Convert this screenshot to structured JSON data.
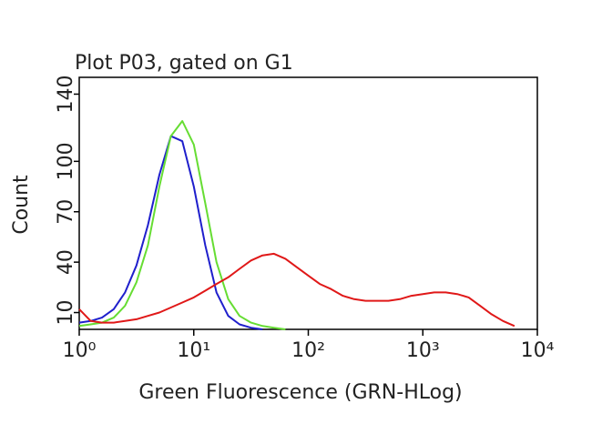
{
  "chart_data": {
    "type": "line",
    "title": "Plot P03, gated on G1",
    "x_label": "Green Fluorescence (GRN-HLog)",
    "y_label": "Count",
    "x_scale": "log",
    "xlim": [
      1,
      10000
    ],
    "xticks": [
      {
        "value": 1,
        "label": "10⁰"
      },
      {
        "value": 10,
        "label": "10¹"
      },
      {
        "value": 100,
        "label": "10²"
      },
      {
        "value": 1000,
        "label": "10³"
      },
      {
        "value": 10000,
        "label": "10⁴"
      }
    ],
    "ylim": [
      0,
      150
    ],
    "yticks": [
      10,
      40,
      70,
      100,
      140
    ],
    "x": [
      1,
      1.26,
      1.58,
      2,
      2.51,
      3.16,
      3.98,
      5.01,
      6.31,
      7.94,
      10,
      12.6,
      15.8,
      20,
      25.1,
      31.6,
      39.8,
      50.1,
      63.1,
      79.4,
      100,
      126,
      158,
      200,
      251,
      316,
      398,
      501,
      631,
      794,
      1000,
      1259,
      1585,
      1995,
      2512,
      3162,
      3981,
      5012,
      6310
    ],
    "series": [
      {
        "color": "#1f1fcc",
        "values": [
          4,
          5,
          7,
          12,
          22,
          38,
          62,
          92,
          115,
          112,
          85,
          50,
          22,
          8,
          3,
          1,
          0,
          null,
          null,
          null,
          null,
          null,
          null,
          null,
          null,
          null,
          null,
          null,
          null,
          null,
          null,
          null,
          null,
          null,
          null,
          null,
          null,
          null,
          null
        ]
      },
      {
        "color": "#66dd33",
        "values": [
          2,
          3,
          4,
          7,
          14,
          28,
          50,
          85,
          115,
          124,
          110,
          75,
          40,
          18,
          8,
          4,
          2,
          1,
          0,
          null,
          null,
          null,
          null,
          null,
          null,
          null,
          null,
          null,
          null,
          null,
          null,
          null,
          null,
          null,
          null,
          null,
          null,
          null,
          null
        ]
      },
      {
        "color": "#e01818",
        "values": [
          12,
          5,
          4,
          4,
          5,
          6,
          8,
          10,
          13,
          16,
          19,
          23,
          27,
          31,
          36,
          41,
          44,
          45,
          42,
          37,
          32,
          27,
          24,
          20,
          18,
          17,
          17,
          17,
          18,
          20,
          21,
          22,
          22,
          21,
          19,
          14,
          9,
          5,
          2
        ]
      }
    ]
  }
}
